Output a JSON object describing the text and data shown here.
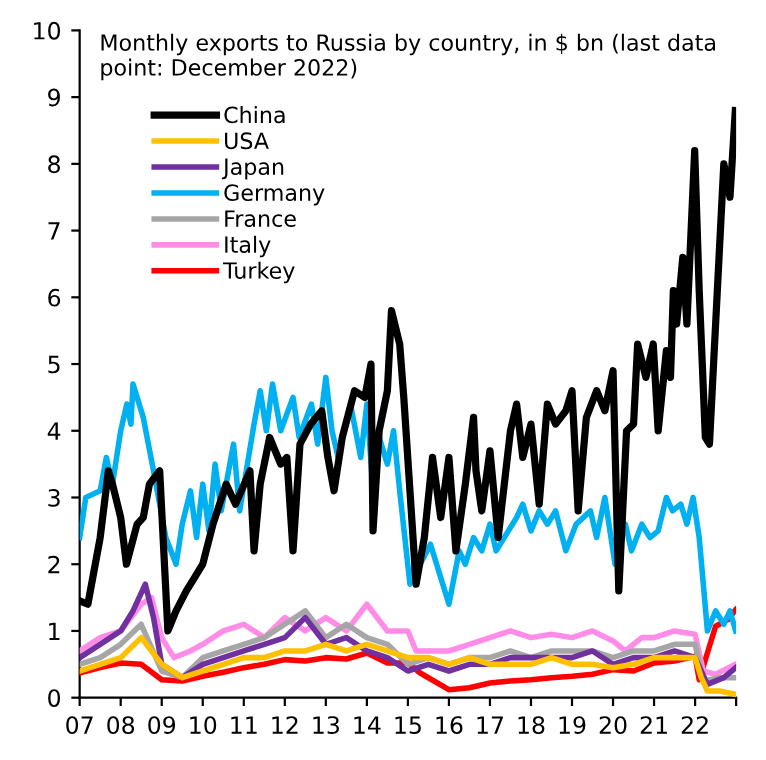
{
  "chart_data": {
    "type": "line",
    "title": "Monthly exports to Russia by country, in $ bn (last data point: December 2022)",
    "xlim": [
      2007,
      2023
    ],
    "xticks": [
      {
        "value": 2007,
        "label": "07"
      },
      {
        "value": 2008,
        "label": "08"
      },
      {
        "value": 2009,
        "label": "09"
      },
      {
        "value": 2010,
        "label": "10"
      },
      {
        "value": 2011,
        "label": "11"
      },
      {
        "value": 2012,
        "label": "12"
      },
      {
        "value": 2013,
        "label": "13"
      },
      {
        "value": 2014,
        "label": "14"
      },
      {
        "value": 2015,
        "label": "15"
      },
      {
        "value": 2016,
        "label": "16"
      },
      {
        "value": 2017,
        "label": "17"
      },
      {
        "value": 2018,
        "label": "18"
      },
      {
        "value": 2019,
        "label": "19"
      },
      {
        "value": 2020,
        "label": "20"
      },
      {
        "value": 2021,
        "label": "21"
      },
      {
        "value": 2022,
        "label": "22"
      },
      {
        "value": 2023,
        "label": null
      }
    ],
    "ylim": [
      0,
      10
    ],
    "yticks": [
      0,
      1,
      2,
      3,
      4,
      5,
      6,
      7,
      8,
      9,
      10
    ],
    "grid": false,
    "legend": "top left",
    "marker": "none",
    "line_style": "solid",
    "series": [
      {
        "name": "China",
        "color": "#000000",
        "x": [
          2007.0,
          2007.2,
          2007.5,
          2007.7,
          2007.8,
          2008.0,
          2008.14,
          2008.4,
          2008.55,
          2008.7,
          2008.95,
          2009.15,
          2009.35,
          2009.6,
          2009.8,
          2010.0,
          2010.25,
          2010.57,
          2010.8,
          2011.15,
          2011.25,
          2011.4,
          2011.63,
          2011.9,
          2012.05,
          2012.2,
          2012.37,
          2012.63,
          2012.9,
          2013.05,
          2013.2,
          2013.4,
          2013.7,
          2013.95,
          2014.1,
          2014.15,
          2014.3,
          2014.5,
          2014.6,
          2014.8,
          2014.9,
          2015.2,
          2015.4,
          2015.6,
          2015.8,
          2016.0,
          2016.17,
          2016.4,
          2016.6,
          2016.66,
          2016.8,
          2017.0,
          2017.2,
          2017.5,
          2017.65,
          2017.8,
          2018.0,
          2018.2,
          2018.4,
          2018.6,
          2018.85,
          2019.0,
          2019.15,
          2019.35,
          2019.6,
          2019.8,
          2020.0,
          2020.14,
          2020.33,
          2020.5,
          2020.6,
          2020.8,
          2020.98,
          2021.1,
          2021.3,
          2021.4,
          2021.47,
          2021.55,
          2021.7,
          2021.8,
          2021.99,
          2022.1,
          2022.25,
          2022.35,
          2022.7,
          2022.85,
          2022.98
        ],
        "values": [
          1.45,
          1.4,
          2.4,
          3.4,
          3.2,
          2.7,
          2.0,
          2.6,
          2.7,
          3.2,
          3.4,
          1.0,
          1.3,
          1.6,
          1.8,
          2.0,
          2.6,
          3.2,
          2.9,
          3.4,
          2.2,
          3.2,
          3.9,
          3.5,
          3.6,
          2.2,
          3.8,
          4.1,
          4.3,
          3.6,
          3.1,
          3.9,
          4.6,
          4.5,
          5.0,
          2.5,
          4.0,
          4.6,
          5.8,
          5.3,
          4.5,
          1.7,
          2.4,
          3.6,
          2.7,
          3.6,
          2.2,
          3.2,
          4.2,
          3.4,
          2.8,
          3.7,
          2.4,
          4.0,
          4.4,
          3.6,
          4.1,
          2.9,
          4.4,
          4.1,
          4.3,
          4.6,
          2.8,
          4.2,
          4.6,
          4.3,
          4.9,
          1.6,
          4.0,
          4.1,
          5.3,
          4.8,
          5.3,
          4.0,
          5.2,
          4.8,
          6.1,
          5.6,
          6.6,
          5.6,
          8.2,
          6.1,
          3.9,
          3.8,
          8.0,
          7.5,
          8.8
        ]
      },
      {
        "name": "USA",
        "color": "#ffc000",
        "x": [
          2007.0,
          2007.5,
          2008.0,
          2008.5,
          2009.0,
          2009.5,
          2010.0,
          2010.5,
          2011.0,
          2011.5,
          2012.0,
          2012.5,
          2013.0,
          2013.5,
          2014.0,
          2014.5,
          2015.0,
          2015.5,
          2016.0,
          2016.5,
          2017.0,
          2017.5,
          2018.0,
          2018.5,
          2019.0,
          2019.5,
          2020.0,
          2020.5,
          2021.0,
          2021.5,
          2022.0,
          2022.15,
          2022.3,
          2022.6,
          2022.99
        ],
        "values": [
          0.4,
          0.5,
          0.6,
          0.9,
          0.5,
          0.3,
          0.4,
          0.5,
          0.6,
          0.6,
          0.7,
          0.7,
          0.8,
          0.7,
          0.8,
          0.7,
          0.6,
          0.6,
          0.5,
          0.6,
          0.5,
          0.5,
          0.5,
          0.6,
          0.5,
          0.5,
          0.45,
          0.5,
          0.6,
          0.6,
          0.6,
          0.3,
          0.1,
          0.1,
          0.05
        ]
      },
      {
        "name": "Japan",
        "color": "#7030a0",
        "x": [
          2007.0,
          2007.5,
          2008.0,
          2008.3,
          2008.6,
          2008.8,
          2009.0,
          2009.5,
          2010.0,
          2010.5,
          2011.0,
          2011.5,
          2012.0,
          2012.5,
          2013.0,
          2013.5,
          2014.0,
          2014.5,
          2015.0,
          2015.5,
          2016.0,
          2016.5,
          2017.0,
          2017.5,
          2018.0,
          2018.5,
          2019.0,
          2019.5,
          2020.0,
          2020.5,
          2021.0,
          2021.5,
          2022.0,
          2022.15,
          2022.3,
          2022.7,
          2022.99
        ],
        "values": [
          0.6,
          0.8,
          1.0,
          1.3,
          1.7,
          1.2,
          0.5,
          0.3,
          0.5,
          0.6,
          0.7,
          0.8,
          0.9,
          1.2,
          0.8,
          0.9,
          0.7,
          0.6,
          0.4,
          0.5,
          0.4,
          0.5,
          0.5,
          0.6,
          0.6,
          0.6,
          0.6,
          0.7,
          0.5,
          0.6,
          0.6,
          0.7,
          0.6,
          0.4,
          0.2,
          0.3,
          0.45
        ]
      },
      {
        "name": "Germany",
        "color": "#00b0f0",
        "x": [
          2007.0,
          2007.15,
          2007.5,
          2007.65,
          2007.8,
          2008.0,
          2008.15,
          2008.25,
          2008.3,
          2008.4,
          2008.55,
          2008.8,
          2009.1,
          2009.35,
          2009.5,
          2009.7,
          2009.85,
          2010.0,
          2010.15,
          2010.3,
          2010.45,
          2010.75,
          2010.9,
          2011.25,
          2011.4,
          2011.55,
          2011.7,
          2011.9,
          2012.2,
          2012.35,
          2012.65,
          2012.8,
          2013.0,
          2013.15,
          2013.3,
          2013.6,
          2013.85,
          2014.0,
          2014.15,
          2014.3,
          2014.5,
          2014.65,
          2014.8,
          2015.05,
          2015.2,
          2015.3,
          2015.55,
          2015.75,
          2016.0,
          2016.25,
          2016.4,
          2016.6,
          2016.8,
          2017.0,
          2017.15,
          2017.35,
          2017.65,
          2017.8,
          2018.0,
          2018.2,
          2018.4,
          2018.6,
          2018.85,
          2019.1,
          2019.45,
          2019.6,
          2019.8,
          2020.05,
          2020.3,
          2020.45,
          2020.7,
          2020.9,
          2021.1,
          2021.3,
          2021.45,
          2021.65,
          2021.8,
          2021.95,
          2022.1,
          2022.3,
          2022.5,
          2022.7,
          2022.85,
          2022.99
        ],
        "values": [
          2.4,
          3.0,
          3.1,
          3.6,
          3.2,
          4.0,
          4.4,
          4.1,
          4.7,
          4.5,
          4.2,
          3.4,
          2.4,
          2.0,
          2.6,
          3.1,
          2.4,
          3.2,
          2.5,
          3.5,
          2.8,
          3.8,
          2.8,
          4.1,
          4.6,
          4.0,
          4.7,
          4.0,
          4.5,
          3.9,
          4.4,
          3.8,
          4.8,
          4.0,
          3.6,
          4.4,
          3.6,
          4.4,
          3.1,
          3.9,
          3.5,
          4.0,
          3.1,
          1.7,
          2.1,
          2.0,
          2.3,
          1.9,
          1.4,
          2.2,
          2.0,
          2.4,
          2.2,
          2.6,
          2.2,
          2.4,
          2.7,
          2.9,
          2.5,
          2.8,
          2.6,
          2.8,
          2.2,
          2.6,
          2.8,
          2.4,
          3.0,
          2.0,
          2.6,
          2.2,
          2.6,
          2.4,
          2.5,
          3.0,
          2.8,
          2.9,
          2.6,
          3.0,
          2.4,
          1.0,
          1.3,
          1.1,
          1.3,
          1.0
        ]
      },
      {
        "name": "France",
        "color": "#a6a6a6",
        "x": [
          2007.0,
          2007.5,
          2008.0,
          2008.5,
          2009.0,
          2009.5,
          2010.0,
          2010.5,
          2011.0,
          2011.5,
          2012.0,
          2012.5,
          2013.0,
          2013.5,
          2014.0,
          2014.5,
          2015.0,
          2015.5,
          2016.0,
          2016.5,
          2017.0,
          2017.5,
          2018.0,
          2018.5,
          2019.0,
          2019.5,
          2020.0,
          2020.5,
          2021.0,
          2021.5,
          2022.0,
          2022.2,
          2022.6,
          2022.99
        ],
        "values": [
          0.5,
          0.6,
          0.8,
          1.1,
          0.4,
          0.3,
          0.6,
          0.7,
          0.8,
          0.9,
          1.1,
          1.3,
          0.9,
          1.1,
          0.9,
          0.8,
          0.5,
          0.6,
          0.5,
          0.6,
          0.6,
          0.7,
          0.6,
          0.7,
          0.7,
          0.7,
          0.6,
          0.7,
          0.7,
          0.8,
          0.8,
          0.25,
          0.3,
          0.3
        ]
      },
      {
        "name": "Italy",
        "color": "#ff8ce6",
        "x": [
          2007.0,
          2007.5,
          2008.0,
          2008.5,
          2008.75,
          2009.0,
          2009.3,
          2009.7,
          2010.0,
          2010.5,
          2011.0,
          2011.5,
          2012.0,
          2012.5,
          2013.0,
          2013.5,
          2014.0,
          2014.5,
          2015.0,
          2015.2,
          2016.0,
          2016.5,
          2017.0,
          2017.5,
          2018.0,
          2018.5,
          2019.0,
          2019.5,
          2020.0,
          2020.3,
          2020.7,
          2021.0,
          2021.5,
          2022.0,
          2022.2,
          2022.5,
          2022.99
        ],
        "values": [
          0.7,
          0.9,
          1.0,
          1.4,
          1.5,
          0.9,
          0.6,
          0.7,
          0.8,
          1.0,
          1.1,
          0.9,
          1.2,
          1.0,
          1.2,
          1.0,
          1.4,
          1.0,
          1.0,
          0.7,
          0.7,
          0.8,
          0.9,
          1.0,
          0.9,
          0.95,
          0.9,
          1.0,
          0.85,
          0.7,
          0.9,
          0.9,
          1.0,
          0.95,
          0.4,
          0.35,
          0.5
        ]
      },
      {
        "name": "Turkey",
        "color": "#ff0000",
        "x": [
          2007.0,
          2007.5,
          2008.0,
          2008.5,
          2009.0,
          2009.5,
          2010.0,
          2010.5,
          2011.0,
          2011.5,
          2012.0,
          2012.5,
          2013.0,
          2013.5,
          2014.0,
          2014.5,
          2015.0,
          2015.3,
          2016.0,
          2016.5,
          2017.0,
          2017.5,
          2018.0,
          2018.5,
          2019.0,
          2019.5,
          2020.0,
          2020.5,
          2021.0,
          2021.5,
          2022.0,
          2022.1,
          2022.3,
          2022.5,
          2022.8,
          2022.99
        ],
        "values": [
          0.37,
          0.45,
          0.52,
          0.5,
          0.27,
          0.25,
          0.32,
          0.38,
          0.45,
          0.5,
          0.57,
          0.55,
          0.6,
          0.58,
          0.67,
          0.52,
          0.52,
          0.37,
          0.12,
          0.15,
          0.22,
          0.25,
          0.27,
          0.3,
          0.32,
          0.35,
          0.42,
          0.4,
          0.52,
          0.55,
          0.62,
          0.27,
          0.67,
          1.07,
          1.17,
          1.32
        ]
      }
    ]
  }
}
